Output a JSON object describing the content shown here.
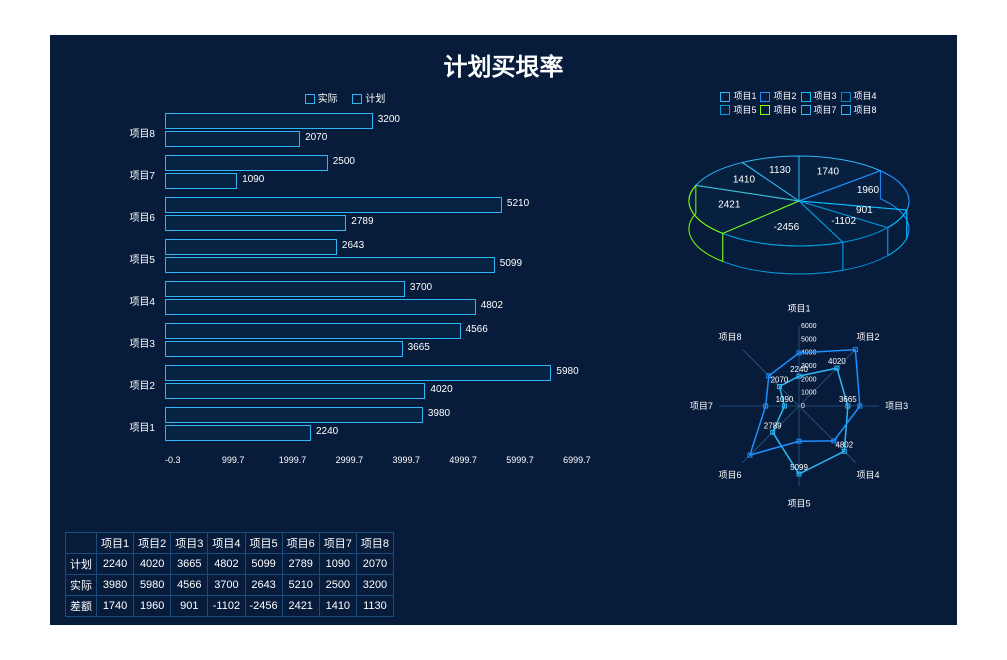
{
  "title": "计划买垠率",
  "colors": {
    "bg": "#071b3a",
    "stroke": "#2db7f5",
    "text": "#ffffff",
    "grid": "#1a4d7a",
    "highlight": "#3ae0c4"
  },
  "bar_chart": {
    "legend": {
      "series1": "实际",
      "series2": "计划"
    },
    "x_ticks": [
      "-0.3",
      "999.7",
      "1999.7",
      "2999.7",
      "3999.7",
      "4999.7",
      "5999.7",
      "6999.7"
    ],
    "x_max": 7000,
    "rows": [
      {
        "label": "项目8",
        "actual": 3200,
        "plan": 2070
      },
      {
        "label": "项目7",
        "actual": 2500,
        "plan": 1090
      },
      {
        "label": "项目6",
        "actual": 5210,
        "plan": 2789
      },
      {
        "label": "项目5",
        "plan": 5099,
        "actual": 2643
      },
      {
        "label": "项目4",
        "plan": 4802,
        "actual": 3700
      },
      {
        "label": "项目3",
        "actual": 4566,
        "plan": 3665
      },
      {
        "label": "项目2",
        "actual": 5980,
        "plan": 4020
      },
      {
        "label": "项目1",
        "actual": 3980,
        "plan": 2240
      }
    ]
  },
  "pie_chart": {
    "legend": [
      "项目1",
      "项目2",
      "项目3",
      "项目4",
      "项目5",
      "项目6",
      "项目7",
      "项目8"
    ],
    "values": [
      1740,
      1960,
      901,
      -1102,
      -2456,
      2421,
      1410,
      1130
    ],
    "colors": [
      "#2db7f5",
      "#1e90ff",
      "#00c2ff",
      "#0088cc",
      "#00a0e0",
      "#7fff00",
      "#2db7f5",
      "#2db7f5"
    ]
  },
  "radar_chart": {
    "axes": [
      "项目1",
      "项目2",
      "项目3",
      "项目4",
      "项目5",
      "项目6",
      "项目7",
      "项目8"
    ],
    "scale_labels": [
      "0",
      "1000",
      "2000",
      "3000",
      "4000",
      "5000",
      "6000"
    ],
    "max": 6000,
    "plan": [
      2240,
      4020,
      3665,
      4802,
      5099,
      2789,
      1090,
      2070
    ],
    "actual": [
      3980,
      5980,
      4566,
      3700,
      2643,
      5210,
      2500,
      3200
    ],
    "axis_value_labels": [
      "2240",
      "4020",
      "3665",
      "4802",
      "项目5",
      "2789",
      "1090",
      "2070"
    ],
    "bottom_label": "项目5"
  },
  "table": {
    "columns": [
      "",
      "项目1",
      "项目2",
      "项目3",
      "项目4",
      "项目5",
      "项目6",
      "项目7",
      "项目8"
    ],
    "rows": [
      {
        "label": "计划",
        "values": [
          2240,
          4020,
          3665,
          4802,
          5099,
          2789,
          1090,
          2070
        ]
      },
      {
        "label": "实际",
        "values": [
          3980,
          5980,
          4566,
          3700,
          2643,
          5210,
          2500,
          3200
        ]
      },
      {
        "label": "差额",
        "values": [
          1740,
          1960,
          901,
          -1102,
          -2456,
          2421,
          1410,
          1130
        ]
      }
    ]
  }
}
